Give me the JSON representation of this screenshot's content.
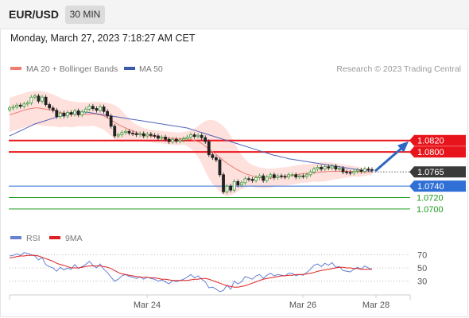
{
  "header": {
    "instrument": "EUR/USD",
    "timeframe": "30 MIN"
  },
  "datetime": "Monday, March 27, 2023 7:18:27 AM CET",
  "legend_main": {
    "bb_label": "MA 20 + Bollinger Bands",
    "ma50_label": "MA 50",
    "copyright": "Research © 2023 Trading Central"
  },
  "legend_rsi": {
    "rsi_label": "RSI",
    "ma9_label": "9MA"
  },
  "colors": {
    "resistance": "#e8141c",
    "support": "#2f6fd6",
    "target": "#1b9a1b",
    "current": "#3a3a3a",
    "band": "#fdd5d0",
    "ma20": "#f07d74",
    "ma50": "#5062b8",
    "rsi": "#6480d4",
    "rsi_ma": "#e02020",
    "arrow": "#2f67c4",
    "candle_up": "#3a9a3a",
    "candle_down": "#222222"
  },
  "chart_data": [
    {
      "type": "candlestick",
      "x_labels": [
        "Mar 24",
        "Mar 26",
        "Mar 28"
      ],
      "ylim": [
        1.069,
        1.092
      ],
      "levels": [
        {
          "value": 1.082,
          "label": "1.0820",
          "kind": "resistance"
        },
        {
          "value": 1.08,
          "label": "1.0800",
          "kind": "resistance"
        },
        {
          "value": 1.0765,
          "label": "1.0765",
          "kind": "current"
        },
        {
          "value": 1.074,
          "label": "1.0740",
          "kind": "support"
        },
        {
          "value": 1.072,
          "label": "1.0720",
          "kind": "target"
        },
        {
          "value": 1.07,
          "label": "1.0700",
          "kind": "target"
        }
      ],
      "close": [
        1.0877,
        1.0879,
        1.0882,
        1.088,
        1.0884,
        1.0886,
        1.0896,
        1.0898,
        1.0889,
        1.0896,
        1.0883,
        1.0877,
        1.0873,
        1.0862,
        1.0868,
        1.0863,
        1.0869,
        1.0866,
        1.0872,
        1.0865,
        1.087,
        1.0875,
        1.088,
        1.0876,
        1.0873,
        1.0879,
        1.0871,
        1.0863,
        1.0845,
        1.0828,
        1.083,
        1.0834,
        1.0836,
        1.0833,
        1.0832,
        1.083,
        1.0832,
        1.0828,
        1.0831,
        1.0829,
        1.0828,
        1.0824,
        1.0826,
        1.0822,
        1.0818,
        1.0822,
        1.0819,
        1.0821,
        1.0823,
        1.0826,
        1.083,
        1.0827,
        1.0829,
        1.0825,
        1.0818,
        1.0795,
        1.079,
        1.0786,
        1.076,
        1.073,
        1.074,
        1.0733,
        1.0748,
        1.0742,
        1.0746,
        1.0753,
        1.0752,
        1.075,
        1.0755,
        1.0758,
        1.075,
        1.0756,
        1.076,
        1.0755,
        1.0758,
        1.0757,
        1.0756,
        1.076,
        1.076,
        1.0756,
        1.0758,
        1.0757,
        1.076,
        1.0765,
        1.077,
        1.0773,
        1.077,
        1.0774,
        1.0772,
        1.0775,
        1.077,
        1.0771,
        1.0765,
        1.0764,
        1.0763,
        1.0766,
        1.0768,
        1.0766,
        1.077,
        1.0769,
        1.0768
      ],
      "ma20": [
        1.0865,
        1.0867,
        1.0869,
        1.0871,
        1.0873,
        1.0875,
        1.0876,
        1.0877,
        1.0877,
        1.0876,
        1.0875,
        1.0874,
        1.0873,
        1.0871,
        1.0869,
        1.0868,
        1.0867,
        1.0866,
        1.0866,
        1.0866,
        1.0866,
        1.0866,
        1.0866,
        1.0867,
        1.0866,
        1.0865,
        1.0863,
        1.086,
        1.0856,
        1.0852,
        1.0848,
        1.0845,
        1.0842,
        1.0839,
        1.0837,
        1.0834,
        1.0832,
        1.083,
        1.0829,
        1.0828,
        1.0827,
        1.0826,
        1.0826,
        1.0825,
        1.0824,
        1.0824,
        1.0823,
        1.0823,
        1.0824,
        1.0823,
        1.0822,
        1.082,
        1.0818,
        1.0815,
        1.081,
        1.0805,
        1.08,
        1.0796,
        1.079,
        1.0785,
        1.078,
        1.0776,
        1.0772,
        1.0768,
        1.0765,
        1.0762,
        1.076,
        1.0758,
        1.0756,
        1.0755,
        1.0754,
        1.0754,
        1.0754,
        1.0755,
        1.0756,
        1.0757,
        1.0757,
        1.0758,
        1.0759,
        1.076,
        1.0761,
        1.0762,
        1.0762,
        1.0763,
        1.0764,
        1.0764,
        1.0765,
        1.0765,
        1.0766,
        1.0766,
        1.0766,
        1.0766,
        1.0766,
        1.0766,
        1.0766,
        1.0766,
        1.0765,
        1.0765,
        1.0765,
        1.0765,
        1.0765
      ],
      "bb_upper": [
        1.0895,
        1.0897,
        1.0899,
        1.0901,
        1.0903,
        1.0905,
        1.0906,
        1.0907,
        1.0907,
        1.0906,
        1.0905,
        1.0903,
        1.0901,
        1.0898,
        1.0895,
        1.0892,
        1.089,
        1.0889,
        1.0888,
        1.0887,
        1.0887,
        1.0887,
        1.0887,
        1.0888,
        1.0888,
        1.0888,
        1.0887,
        1.0886,
        1.0884,
        1.0882,
        1.0878,
        1.0872,
        1.0865,
        1.0858,
        1.0852,
        1.0848,
        1.0845,
        1.0842,
        1.084,
        1.0839,
        1.0838,
        1.0837,
        1.0837,
        1.0836,
        1.0835,
        1.0835,
        1.0834,
        1.0834,
        1.0835,
        1.0836,
        1.0838,
        1.0841,
        1.0845,
        1.085,
        1.0854,
        1.0856,
        1.0856,
        1.0854,
        1.085,
        1.0845,
        1.0838,
        1.0828,
        1.0817,
        1.0805,
        1.0795,
        1.0787,
        1.0781,
        1.0777,
        1.0775,
        1.0773,
        1.0772,
        1.0771,
        1.0771,
        1.0771,
        1.0772,
        1.0773,
        1.0773,
        1.0774,
        1.0775,
        1.0776,
        1.0777,
        1.0778,
        1.0778,
        1.0779,
        1.078,
        1.0781,
        1.0782,
        1.0782,
        1.0782,
        1.0781,
        1.078,
        1.0779,
        1.0778,
        1.0777,
        1.0776,
        1.0775,
        1.0774,
        1.0773,
        1.0772,
        1.0771,
        1.0771
      ],
      "bb_lower": [
        1.0835,
        1.0837,
        1.0839,
        1.0841,
        1.0843,
        1.0845,
        1.0846,
        1.0847,
        1.0847,
        1.0846,
        1.0845,
        1.0845,
        1.0845,
        1.0844,
        1.0843,
        1.0844,
        1.0844,
        1.0843,
        1.0844,
        1.0845,
        1.0845,
        1.0845,
        1.0845,
        1.0846,
        1.0844,
        1.0842,
        1.0839,
        1.0834,
        1.0828,
        1.0822,
        1.0818,
        1.0818,
        1.0819,
        1.082,
        1.0822,
        1.082,
        1.0819,
        1.0818,
        1.0818,
        1.0817,
        1.0816,
        1.0815,
        1.0815,
        1.0814,
        1.0813,
        1.0813,
        1.0812,
        1.0812,
        1.0813,
        1.081,
        1.0806,
        1.0799,
        1.0791,
        1.078,
        1.0766,
        1.0754,
        1.0744,
        1.0738,
        1.073,
        1.0725,
        1.0722,
        1.0724,
        1.0727,
        1.0731,
        1.0735,
        1.0737,
        1.0739,
        1.0739,
        1.0737,
        1.0737,
        1.0736,
        1.0737,
        1.0737,
        1.0739,
        1.074,
        1.0741,
        1.0741,
        1.0742,
        1.0743,
        1.0744,
        1.0745,
        1.0746,
        1.0746,
        1.0747,
        1.0748,
        1.0747,
        1.0748,
        1.0748,
        1.075,
        1.0751,
        1.0752,
        1.0753,
        1.0754,
        1.0755,
        1.0756,
        1.0757,
        1.0756,
        1.0757,
        1.0758,
        1.0759,
        1.0759
      ],
      "ma50": [
        1.0828,
        1.0831,
        1.0834,
        1.0837,
        1.084,
        1.0843,
        1.0846,
        1.0849,
        1.0851,
        1.0853,
        1.0855,
        1.0857,
        1.0859,
        1.0861,
        1.0863,
        1.0865,
        1.0867,
        1.0868,
        1.0869,
        1.087,
        1.087,
        1.087,
        1.0869,
        1.0868,
        1.0867,
        1.0866,
        1.0865,
        1.0864,
        1.0863,
        1.0862,
        1.0861,
        1.086,
        1.0859,
        1.0858,
        1.0857,
        1.0856,
        1.0855,
        1.0854,
        1.0853,
        1.0852,
        1.0851,
        1.085,
        1.0849,
        1.0848,
        1.0847,
        1.0846,
        1.0845,
        1.0844,
        1.0843,
        1.0842,
        1.084,
        1.0838,
        1.0836,
        1.0834,
        1.0832,
        1.083,
        1.0828,
        1.0826,
        1.0824,
        1.0822,
        1.082,
        1.0818,
        1.0816,
        1.0814,
        1.0812,
        1.081,
        1.0808,
        1.0806,
        1.0804,
        1.0802,
        1.08,
        1.0798,
        1.0796,
        1.0794,
        1.0793,
        1.0791,
        1.079,
        1.0788,
        1.0787,
        1.0786,
        1.0785,
        1.0784,
        1.0783,
        1.0782,
        1.0781,
        1.078,
        1.0779,
        1.0778,
        1.0777,
        1.0776,
        1.0775,
        1.0774,
        1.0773,
        1.0772,
        1.0771,
        1.077,
        1.0769,
        1.0768,
        1.0767,
        1.0767,
        1.0766
      ],
      "target_arrow": {
        "from": 1.0765,
        "to": 1.082
      }
    },
    {
      "type": "line",
      "ylim": [
        20,
        80
      ],
      "y_ticks": [
        70,
        50,
        30
      ],
      "series": [
        {
          "name": "RSI",
          "values": [
            68,
            69,
            71,
            69,
            73,
            72,
            70,
            68,
            62,
            66,
            55,
            52,
            50,
            45,
            51,
            47,
            50,
            48,
            55,
            49,
            52,
            55,
            60,
            54,
            50,
            56,
            48,
            43,
            36,
            30,
            33,
            38,
            40,
            37,
            36,
            34,
            37,
            33,
            36,
            34,
            33,
            30,
            32,
            29,
            26,
            31,
            29,
            31,
            33,
            36,
            40,
            35,
            38,
            33,
            29,
            20,
            21,
            18,
            14,
            16,
            24,
            18,
            30,
            26,
            29,
            37,
            35,
            33,
            38,
            40,
            34,
            39,
            42,
            38,
            40,
            39,
            38,
            42,
            42,
            38,
            40,
            39,
            43,
            48,
            54,
            56,
            52,
            57,
            54,
            58,
            51,
            52,
            46,
            45,
            44,
            48,
            51,
            48,
            53,
            50,
            48
          ]
        },
        {
          "name": "9MA",
          "values": [
            65,
            66,
            67,
            68,
            68,
            69,
            69,
            69,
            68,
            66,
            64,
            62,
            60,
            57,
            55,
            54,
            52,
            50,
            50,
            50,
            51,
            52,
            53,
            53,
            53,
            53,
            52,
            51,
            49,
            46,
            43,
            41,
            40,
            39,
            38,
            37,
            36,
            36,
            36,
            35,
            35,
            34,
            33,
            33,
            32,
            31,
            31,
            31,
            31,
            31,
            32,
            33,
            33,
            34,
            34,
            33,
            31,
            29,
            27,
            25,
            23,
            22,
            21,
            21,
            22,
            23,
            25,
            27,
            29,
            31,
            33,
            34,
            35,
            36,
            37,
            38,
            38,
            39,
            39,
            40,
            40,
            40,
            41,
            42,
            43,
            45,
            46,
            47,
            48,
            49,
            50,
            51,
            51,
            50,
            50,
            49,
            49,
            48,
            48,
            48,
            48
          ]
        }
      ]
    }
  ]
}
